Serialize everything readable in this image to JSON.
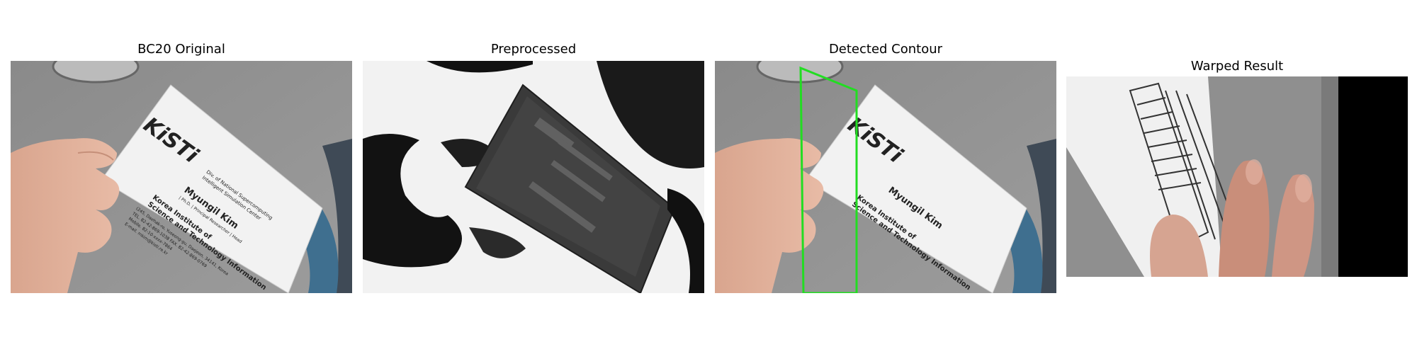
{
  "panels": [
    {
      "title": "BC20 Original"
    },
    {
      "title": "Preprocessed"
    },
    {
      "title": "Detected Contour"
    },
    {
      "title": "Warped Result"
    }
  ],
  "card": {
    "logo": "KiSTi",
    "dept": "Div. of National Supercomputing",
    "center": "Intelligent Simulation Center",
    "name": "Myungil Kim",
    "role": "| Ph.D. | Principal Researcher | Head",
    "org1": "Korea Institute of",
    "org2": "Science and Technology Information",
    "addr": "(245, Daehak-ro, Yuseong-gu, Daejeon, 34141, Korea",
    "tel": "TEL. 82-42-869-1038  FAX. 82-42-869-0769",
    "mobile": "Mobile. 82-10-xxxx-7864",
    "email": "E-mail. mkim@kisti.re.kr"
  },
  "colors": {
    "contour": "#22dd22",
    "logo_blue": "#1a5db5",
    "logo_red": "#d32020"
  }
}
